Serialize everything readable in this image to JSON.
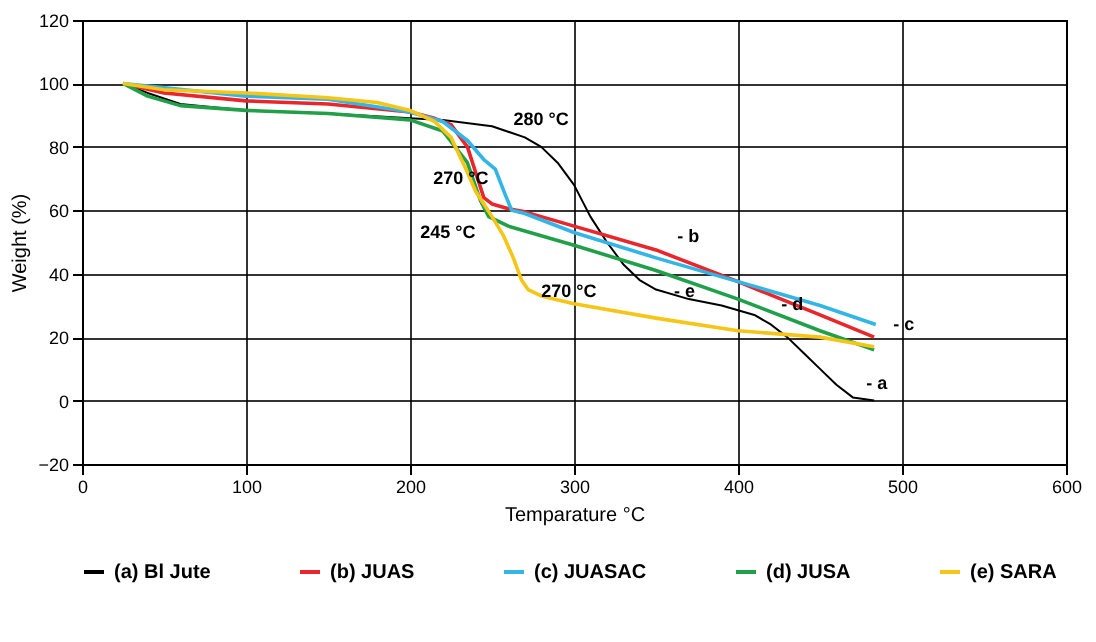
{
  "chart_data": {
    "type": "line",
    "xlabel": "Temparature °C",
    "ylabel": "Weight (%)",
    "xlim": [
      0,
      600
    ],
    "xticks": [
      0,
      100,
      200,
      300,
      400,
      500,
      600
    ],
    "ylim": [
      -20,
      120
    ],
    "yticks": [
      -20,
      0,
      20,
      40,
      60,
      80,
      100,
      120
    ],
    "grid": true,
    "legend": "bottom",
    "marker": "none",
    "line_style": "solid",
    "series": [
      {
        "name": "(a) Bl Jute",
        "color": "#000000",
        "x": [
          25,
          40,
          60,
          100,
          150,
          200,
          220,
          250,
          270,
          280,
          290,
          300,
          310,
          320,
          330,
          340,
          350,
          370,
          390,
          410,
          420,
          430,
          440,
          450,
          460,
          470,
          483
        ],
        "values": [
          100,
          97,
          93.5,
          91.5,
          90.5,
          89,
          88.5,
          86.5,
          83,
          80,
          75,
          68,
          58,
          50,
          43,
          38,
          35,
          32,
          30,
          27,
          24,
          20,
          15,
          10,
          5,
          1,
          0
        ]
      },
      {
        "name": "(b) JUAS",
        "color": "#e8262b",
        "x": [
          25,
          50,
          100,
          150,
          200,
          215,
          225,
          235,
          240,
          245,
          250,
          260,
          270,
          300,
          350,
          400,
          450,
          483
        ],
        "values": [
          100,
          97,
          94.5,
          93.5,
          91,
          89,
          87,
          80,
          72,
          64,
          62,
          60.5,
          59.5,
          55,
          47.5,
          37.5,
          27,
          20
        ]
      },
      {
        "name": "(c) JUASAC",
        "color": "#33b5e5",
        "x": [
          25,
          100,
          150,
          200,
          220,
          235,
          245,
          252,
          258,
          262,
          270,
          300,
          350,
          400,
          450,
          484
        ],
        "values": [
          100,
          96,
          95,
          91,
          88,
          82,
          76,
          73,
          65,
          60,
          59,
          53,
          45,
          37.5,
          30,
          24
        ]
      },
      {
        "name": "(d) JUSA",
        "color": "#21a049",
        "x": [
          25,
          40,
          60,
          100,
          150,
          200,
          220,
          235,
          243,
          248,
          260,
          300,
          350,
          400,
          450,
          483
        ],
        "values": [
          100,
          96,
          93,
          91.5,
          90.5,
          88.5,
          85,
          75,
          63,
          58,
          55,
          49,
          41,
          32,
          22,
          16
        ]
      },
      {
        "name": "(e) SARA",
        "color": "#f5c518",
        "x": [
          25,
          50,
          100,
          150,
          180,
          200,
          215,
          225,
          235,
          240,
          245,
          250,
          257,
          263,
          268,
          272,
          280,
          300,
          350,
          400,
          450,
          483
        ],
        "values": [
          100,
          98,
          97,
          95.5,
          94,
          91.5,
          88,
          83,
          72,
          66,
          62,
          58,
          52,
          45,
          38,
          35,
          33,
          30.5,
          26,
          22,
          20,
          17
        ]
      }
    ],
    "annotations": [
      {
        "text": "280 °C",
        "x": 280,
        "y": 80
      },
      {
        "text": "270 °C",
        "x": 270,
        "y": 60
      },
      {
        "text": "245 °C",
        "x": 245,
        "y": 62
      },
      {
        "text": "270 °C",
        "x": 270,
        "y": 37
      },
      {
        "text": "- a",
        "x": 470,
        "y": 3
      },
      {
        "text": "- b",
        "x": 355,
        "y": 48
      },
      {
        "text": "- c",
        "x": 484,
        "y": 24
      },
      {
        "text": "- d",
        "x": 455,
        "y": 23
      },
      {
        "text": "- e",
        "x": 360,
        "y": 27
      }
    ]
  }
}
